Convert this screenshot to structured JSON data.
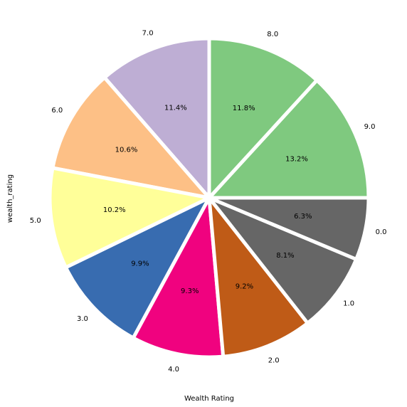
{
  "chart_data": {
    "type": "pie",
    "xlabel": "Wealth Rating",
    "ylabel": "wealth_rating",
    "slices": [
      {
        "label": "9.0",
        "value": 13.2,
        "pct_label": "13.2%",
        "color": "#7fc97f"
      },
      {
        "label": "8.0",
        "value": 11.8,
        "pct_label": "11.8%",
        "color": "#7fc97f"
      },
      {
        "label": "7.0",
        "value": 11.4,
        "pct_label": "11.4%",
        "color": "#beaed4"
      },
      {
        "label": "6.0",
        "value": 10.6,
        "pct_label": "10.6%",
        "color": "#fdc086"
      },
      {
        "label": "5.0",
        "value": 10.2,
        "pct_label": "10.2%",
        "color": "#ffff99"
      },
      {
        "label": "3.0",
        "value": 9.9,
        "pct_label": "9.9%",
        "color": "#386cb0"
      },
      {
        "label": "4.0",
        "value": 9.3,
        "pct_label": "9.3%",
        "color": "#f0027f"
      },
      {
        "label": "2.0",
        "value": 9.2,
        "pct_label": "9.2%",
        "color": "#bf5b17"
      },
      {
        "label": "1.0",
        "value": 8.1,
        "pct_label": "8.1%",
        "color": "#666666"
      },
      {
        "label": "0.0",
        "value": 6.3,
        "pct_label": "6.3%",
        "color": "#666666"
      }
    ]
  }
}
